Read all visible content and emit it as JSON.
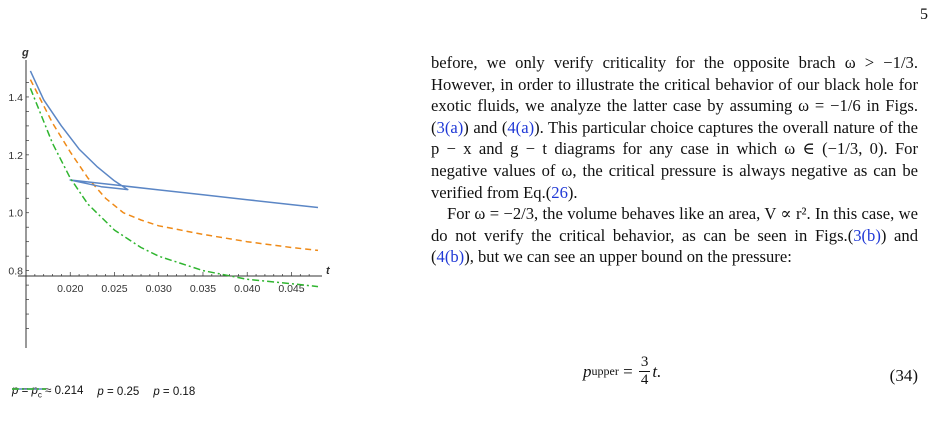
{
  "page_number": "5",
  "figure": {
    "chart_data": {
      "type": "line",
      "xlabel": "t",
      "ylabel": "g",
      "xlim": [
        0.015,
        0.048
      ],
      "ylim": [
        0.55,
        1.5
      ],
      "x_ticks": [
        "0.020",
        "0.025",
        "0.030",
        "0.035",
        "0.040",
        "0.045"
      ],
      "y_ticks": [
        "0.8",
        "1.0",
        "1.2",
        "1.4"
      ],
      "series": [
        {
          "name": "p = p_c ≈ 0.214",
          "color": "#ef8a17",
          "dash": "6,4",
          "x": [
            0.0155,
            0.018,
            0.02,
            0.022,
            0.024,
            0.026,
            0.028,
            0.03,
            0.035,
            0.04,
            0.045,
            0.048
          ],
          "y": [
            1.46,
            1.31,
            1.21,
            1.12,
            1.05,
            1.0,
            0.975,
            0.955,
            0.925,
            0.9,
            0.88,
            0.87
          ]
        },
        {
          "name": "p = 0.25",
          "color": "#5b86c5",
          "dash": "",
          "x": [
            0.0155,
            0.017,
            0.019,
            0.021,
            0.023,
            0.025,
            0.0265,
            0.025,
            0.0235,
            0.022,
            0.02,
            0.025,
            0.03,
            0.035,
            0.04,
            0.045,
            0.048
          ],
          "y": [
            1.49,
            1.39,
            1.3,
            1.22,
            1.16,
            1.11,
            1.08,
            1.085,
            1.09,
            1.1,
            1.113,
            1.096,
            1.079,
            1.062,
            1.045,
            1.028,
            1.018
          ]
        },
        {
          "name": "p = 0.18",
          "color": "#2fb52f",
          "dash": "7,3,2,3",
          "x": [
            0.0155,
            0.018,
            0.02,
            0.022,
            0.025,
            0.028,
            0.03,
            0.035,
            0.04,
            0.045,
            0.048
          ],
          "y": [
            1.43,
            1.24,
            1.12,
            1.03,
            0.94,
            0.88,
            0.85,
            0.8,
            0.77,
            0.755,
            0.745
          ]
        }
      ]
    },
    "legend": [
      {
        "pre": "p",
        "mid": " = ",
        "sub": "p",
        "subsub": "c",
        "post": " ≈ 0.214"
      },
      {
        "pre": "p",
        "mid": " = ",
        "post": "0.25"
      },
      {
        "pre": "p",
        "mid": " = ",
        "post": "0.18"
      }
    ]
  },
  "body": {
    "p1": {
      "t1": "before, we only verify criticality for the opposite brach ω > −1/3. However, in order to illustrate the critical behavior of our black hole for exotic fluids, we analyze the latter case by assuming ω = −1/6 in Figs.(",
      "r1": "3(a)",
      "t2": ") and (",
      "r2": "4(a)",
      "t3": "). This particular choice captures the overall nature of the p − x and g − t diagrams for any case in which ω ∈ (−1/3, 0). For negative values of ω, the critical pressure is always negative as can be verified from Eq.(",
      "r3": "26",
      "t4": ")."
    },
    "p2": {
      "t1": "For ω = −2/3, the volume behaves like an area, V ∝ r². In this case, we do not verify the critical behavior, as can be seen in Figs.(",
      "r1": "3(b)",
      "t2": ") and (",
      "r2": "4(b)",
      "t3": "), but we can see an upper bound on the pressure:"
    }
  },
  "equation": {
    "lhs": "p",
    "lhs_sub": "upper",
    "eq": " = ",
    "num": "3",
    "den": "4",
    "rhs": "t.",
    "number": "(34)"
  }
}
